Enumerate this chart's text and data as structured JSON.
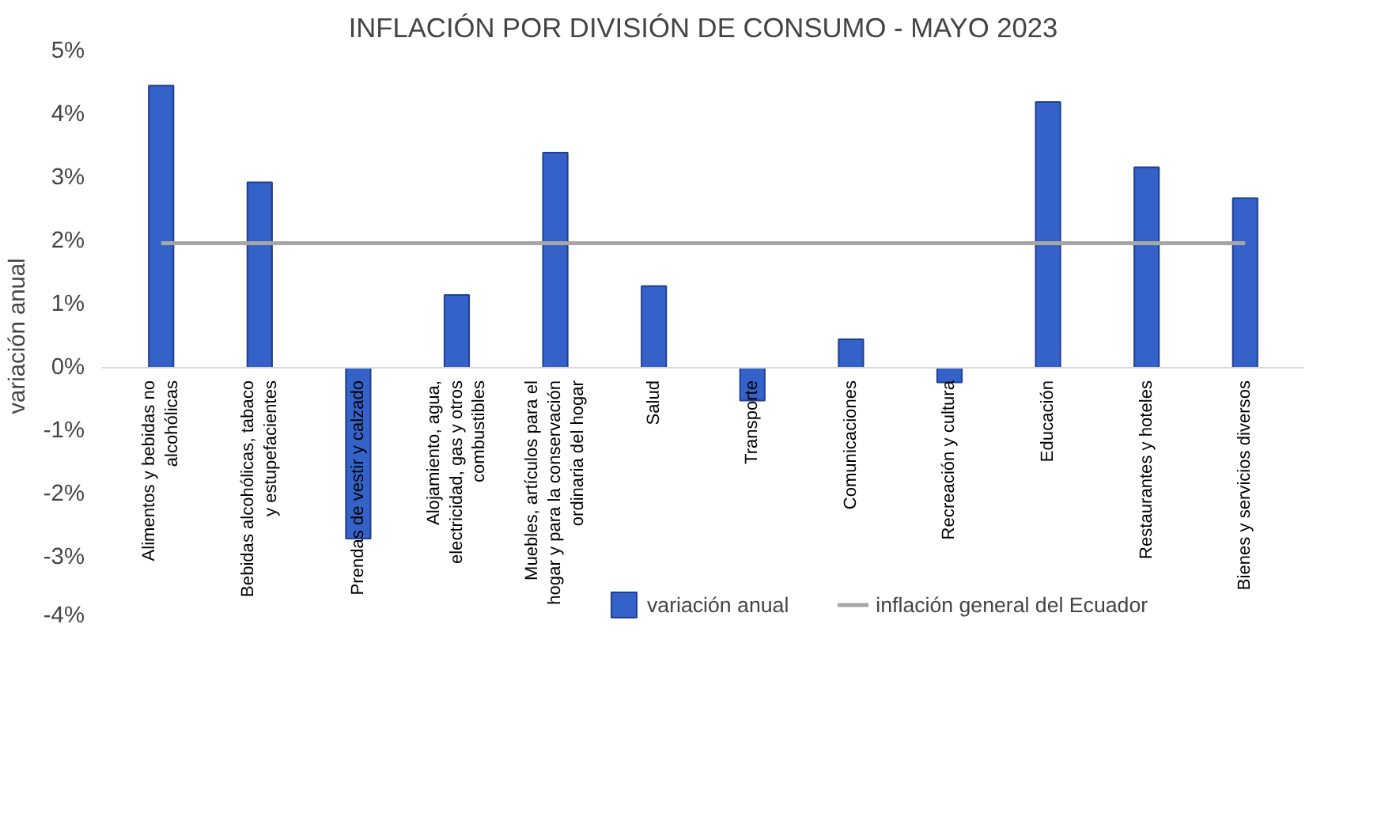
{
  "chart_data": {
    "type": "bar",
    "title": "INFLACIÓN POR DIVISIÓN DE CONSUMO - MAYO 2023",
    "ylabel": "variación anual",
    "categories": [
      "Alimentos y bebidas no alcohólicas",
      "Bebidas alcohólicas, tabaco y estupefacientes",
      "Prendas de vestir y calzado",
      "Alojamiento, agua, electricidad, gas y otros combustibles",
      "Muebles, artículos para el hogar y para la conservación ordinaria del hogar",
      "Salud",
      "Transporte",
      "Comunicaciones",
      "Recreación y cultura",
      "Educación",
      "Restaurantes y hoteles",
      "Bienes y servicios diversos"
    ],
    "series": [
      {
        "name": "variación anual",
        "color": "#3462c8",
        "values": [
          4.46,
          2.93,
          -2.7,
          1.15,
          3.4,
          1.29,
          -0.52,
          0.45,
          -0.23,
          4.2,
          3.17,
          2.68
        ]
      },
      {
        "name": "inflación general del Ecuador",
        "type": "line",
        "color": "#a6a6a6",
        "values": [
          1.97,
          1.97,
          1.97,
          1.97,
          1.97,
          1.97,
          1.97,
          1.97,
          1.97,
          1.97,
          1.97,
          1.97
        ]
      }
    ],
    "ylim": [
      -4,
      5
    ],
    "yticks": [
      {
        "value": -4,
        "label": "-4%"
      },
      {
        "value": -3,
        "label": "-3%"
      },
      {
        "value": -2,
        "label": "-2%"
      },
      {
        "value": -1,
        "label": "-1%"
      },
      {
        "value": 0,
        "label": "0%"
      },
      {
        "value": 1,
        "label": "1%"
      },
      {
        "value": 2,
        "label": "2%"
      },
      {
        "value": 3,
        "label": "3%"
      },
      {
        "value": 4,
        "label": "4%"
      },
      {
        "value": 5,
        "label": "5%"
      }
    ],
    "grid": false,
    "legend": "bottom"
  }
}
